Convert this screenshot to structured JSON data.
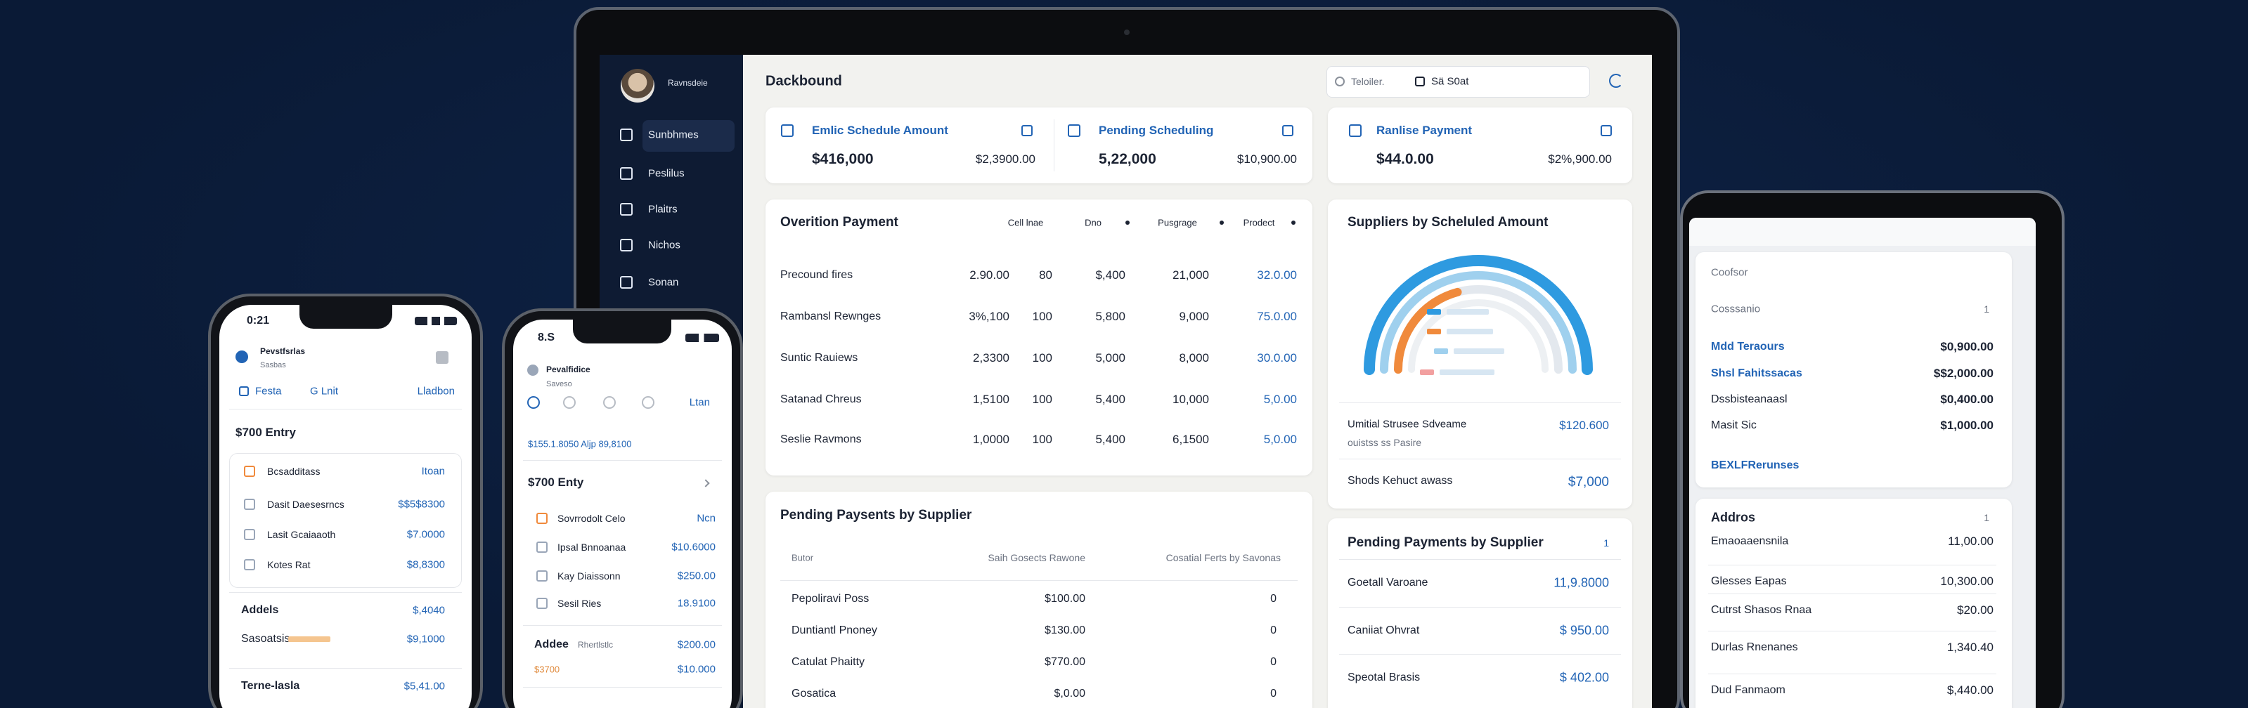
{
  "laptop": {
    "profile_name": "Ravnsdeie",
    "menu": [
      "Sunbhmes",
      "Peslilus",
      "Plaitrs",
      "Nichos",
      "Sonan"
    ],
    "title": "Dackbound",
    "search": "Teloiler.",
    "filter": "Sä S0at",
    "summary": [
      {
        "label": "Emlic Schedule Amount",
        "value": "$416,000",
        "secondary": "$2,3900.00"
      },
      {
        "label": "Pending Scheduling",
        "value": "5,22,000",
        "secondary": "$10,900.00"
      },
      {
        "label": "Ranlise Payment",
        "value": "$44.0.00",
        "secondary": "$2%,900.00"
      }
    ],
    "overview": {
      "title": "Overition Payment",
      "headers": [
        "Cell lnae",
        "Dno",
        "Pusgrage",
        "Prodect"
      ],
      "rows": [
        [
          "Precound fires",
          "2.90.00",
          "80",
          "$,400",
          "21,000",
          "32.0.00"
        ],
        [
          "Rambansl Rewnges",
          "3%,100",
          "100",
          "5,800",
          "9,000",
          "75.0.00"
        ],
        [
          "Suntic Rauiews",
          "2,3300",
          "100",
          "5,000",
          "8,000",
          "30.0.00"
        ],
        [
          "Satanad Chreus",
          "1,5100",
          "100",
          "5,400",
          "10,000",
          "5,0.00"
        ],
        [
          "Seslie Ravmons",
          "1,0000",
          "100",
          "5,400",
          "6,1500",
          "5,0.00"
        ]
      ]
    },
    "suppliers_scheduled": {
      "title": "Suppliers by Scheluled Amount",
      "items": [
        {
          "label": "Umitial Strusee Sdveame",
          "sublabel": "ouistss ss Pasire",
          "value": "$120.600"
        },
        {
          "label": "Shods Kehuct awass",
          "value": "$7,000"
        }
      ]
    },
    "pending_by_supplier": {
      "title": "Pending Paysents by Supplier",
      "headers": [
        "Butor",
        "Saih Gosects Rawone",
        "Cosatial Ferts by Savonas"
      ],
      "rows": [
        [
          "Pepoliravi Poss",
          "$100.00",
          "0"
        ],
        [
          "Duntiantl Pnoney",
          "$130.00",
          "0"
        ],
        [
          "Catulat Phaitty",
          "$770.00",
          "0"
        ],
        [
          "Gosatica",
          "$,0.00",
          "0"
        ]
      ]
    },
    "pending_payments": {
      "title": "Pending Payments by Supplier",
      "count": "1",
      "rows": [
        [
          "Goetall Varoane",
          "11,9.8000"
        ],
        [
          "Caniiat Ohvrat",
          "$ 950.00"
        ],
        [
          "Speotal Brasis",
          "$ 402.00"
        ]
      ]
    }
  },
  "tablet": {
    "section1": {
      "title": "Coofsor",
      "subtitle": "Cosssanio",
      "count": "1",
      "rows": [
        [
          "Mdd Teraours",
          "$0,900.00"
        ],
        [
          "Shsl Fahitssacas",
          "$$2,000.00"
        ],
        [
          "Dssbisteanaasl",
          "$0,400.00"
        ],
        [
          "Masit Sic",
          "$1,000.00"
        ]
      ],
      "link": "BEXLFRerunses"
    },
    "section2": {
      "title": "Addros",
      "count": "1",
      "rows": [
        [
          "Emaoaaensnila",
          "11,00.00"
        ],
        [
          "Glesses Eapas",
          "10,300.00"
        ],
        [
          "Cutrst Shasos Rnaa",
          "$20.00"
        ],
        [
          "Durlas Rnenanes",
          "1,340.40"
        ],
        [
          "Dud Fanmaom",
          "$,440.00"
        ]
      ]
    }
  },
  "phone_1": {
    "time": "0:21",
    "name": "Pevstfsrlas",
    "subtitle": "Sasbas",
    "tabs": [
      "Festa",
      "G Lnit",
      "Lladbon"
    ],
    "entry_title": "$700 Entry",
    "rows": [
      [
        "Bcsadditass",
        "Itoan"
      ],
      [
        "Dasit Daesesrncs",
        "$$5$8300"
      ],
      [
        "Lasit Gcaiaaoth",
        "$7.0000"
      ],
      [
        "Kotes Rat",
        "$8,8300"
      ]
    ],
    "totals": [
      [
        "Addels",
        "$,4040"
      ],
      [
        "Sasoatsis",
        "$9,1000"
      ],
      [
        "Terne-lasla",
        "$5,41.00"
      ]
    ]
  },
  "phone_2": {
    "time": "8.S",
    "name": "Pevalfidice",
    "subtitle": "Saveso",
    "tab": "Ltan",
    "summary": "$155.1.8050 Aljp 89,8100",
    "entry_title": "$700 Enty",
    "rows": [
      [
        "Sovrrodolt Celo",
        "Ncn"
      ],
      [
        "Ipsal Bnnoanaa",
        "$10.6000"
      ],
      [
        "Kay Diaissonn",
        "$250.00"
      ],
      [
        "Sesil Ries",
        "18.9100"
      ]
    ],
    "totals": [
      {
        "label": "Addee",
        "note": "Rhertlstlc",
        "value": "$200.00"
      },
      {
        "label": "$3700",
        "value": "$10.000"
      }
    ]
  }
}
